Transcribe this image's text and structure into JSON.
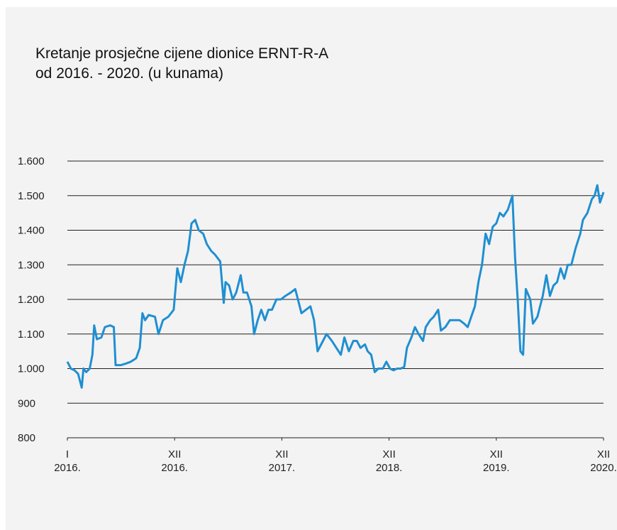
{
  "chart_data": {
    "type": "line",
    "title": [
      "Kretanje prosječne cijene dionice ERNT-R-A",
      "od 2016. - 2020. (u kunama)"
    ],
    "xlim": [
      0,
      60
    ],
    "xticks": [
      {
        "value": 0,
        "label": "I\n2016."
      },
      {
        "value": 12,
        "label": "XII\n2016."
      },
      {
        "value": 24,
        "label": "XII\n2017."
      },
      {
        "value": 36,
        "label": "XII\n2018."
      },
      {
        "value": 48,
        "label": "XII\n2019."
      },
      {
        "value": 60,
        "label": "XII\n2020."
      }
    ],
    "ylim": [
      800,
      1600
    ],
    "yticks": [
      {
        "value": 800,
        "label": "800"
      },
      {
        "value": 900,
        "label": "900"
      },
      {
        "value": 1000,
        "label": "1.000"
      },
      {
        "value": 1100,
        "label": "1.100"
      },
      {
        "value": 1200,
        "label": "1.200"
      },
      {
        "value": 1300,
        "label": "1.300"
      },
      {
        "value": 1400,
        "label": "1.400"
      },
      {
        "value": 1500,
        "label": "1.500"
      },
      {
        "value": 1600,
        "label": "1.600"
      }
    ],
    "grid": true,
    "x": [
      0,
      0.4,
      0.8,
      1.2,
      1.6,
      1.8,
      2.1,
      2.5,
      2.8,
      3.0,
      3.3,
      3.8,
      4.2,
      4.8,
      5.2,
      5.4,
      6.0,
      6.6,
      7.1,
      7.7,
      8.1,
      8.4,
      8.7,
      9.1,
      9.8,
      10.2,
      10.7,
      11.3,
      11.9,
      12.3,
      12.7,
      13.1,
      13.5,
      13.9,
      14.3,
      14.7,
      15.2,
      15.6,
      16.1,
      16.5,
      17.1,
      17.5,
      17.7,
      18.1,
      18.5,
      18.9,
      19.4,
      19.7,
      20.1,
      20.6,
      20.9,
      21.3,
      21.7,
      22.1,
      22.5,
      22.9,
      23.4,
      23.9,
      24.4,
      25.0,
      25.5,
      25.8,
      26.2,
      26.7,
      27.2,
      27.6,
      28.0,
      28.6,
      29.0,
      29.6,
      30.1,
      30.6,
      31.0,
      31.5,
      32.0,
      32.4,
      32.8,
      33.3,
      33.6,
      34.0,
      34.4,
      34.8,
      35.3,
      35.7,
      36.1,
      36.5,
      36.9,
      37.3,
      37.7,
      38.0,
      38.5,
      38.9,
      39.3,
      39.8,
      40.1,
      40.6,
      41.0,
      41.5,
      41.8,
      42.3,
      42.8,
      43.3,
      43.9,
      44.4,
      44.8,
      45.2,
      45.6,
      46.0,
      46.4,
      46.8,
      47.2,
      47.6,
      48.0,
      48.4,
      48.8,
      49.3,
      49.8,
      50.1,
      50.4,
      50.7,
      51.0,
      51.3,
      51.8,
      52.1,
      52.6,
      53.2,
      53.6,
      54.0,
      54.4,
      54.8,
      55.2,
      55.6,
      56.0,
      56.4,
      56.9,
      57.4,
      57.7,
      58.2,
      58.7,
      59.0,
      59.3,
      59.6,
      60.0
    ],
    "series": [
      {
        "color": "#1f8fd2",
        "values": [
          1020,
          1000,
          995,
          985,
          945,
          1000,
          990,
          1000,
          1040,
          1125,
          1085,
          1090,
          1120,
          1125,
          1120,
          1010,
          1010,
          1015,
          1020,
          1030,
          1060,
          1160,
          1140,
          1155,
          1150,
          1100,
          1140,
          1150,
          1170,
          1290,
          1250,
          1300,
          1340,
          1420,
          1430,
          1400,
          1390,
          1360,
          1340,
          1330,
          1310,
          1190,
          1250,
          1240,
          1200,
          1220,
          1270,
          1220,
          1220,
          1180,
          1100,
          1140,
          1170,
          1140,
          1170,
          1170,
          1200,
          1200,
          1210,
          1220,
          1230,
          1200,
          1160,
          1170,
          1180,
          1140,
          1050,
          1080,
          1100,
          1080,
          1060,
          1040,
          1090,
          1050,
          1080,
          1080,
          1060,
          1070,
          1050,
          1040,
          990,
          1000,
          1000,
          1020,
          1000,
          995,
          1000,
          1000,
          1005,
          1060,
          1090,
          1120,
          1100,
          1080,
          1120,
          1140,
          1150,
          1170,
          1110,
          1120,
          1140,
          1140,
          1140,
          1130,
          1120,
          1150,
          1180,
          1250,
          1300,
          1390,
          1360,
          1410,
          1420,
          1450,
          1440,
          1460,
          1500,
          1320,
          1200,
          1050,
          1040,
          1230,
          1200,
          1130,
          1150,
          1210,
          1270,
          1210,
          1240,
          1250,
          1290,
          1260,
          1300,
          1300,
          1350,
          1390,
          1430,
          1450,
          1490,
          1500,
          1530,
          1480,
          1510
        ]
      }
    ]
  }
}
